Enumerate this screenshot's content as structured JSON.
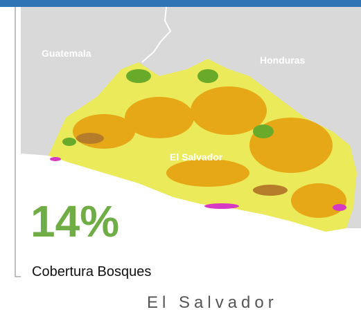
{
  "map": {
    "labels": [
      "Guatemala",
      "Honduras",
      "El Salvador"
    ]
  },
  "stat": {
    "value": "14%",
    "label": "Cobertura Bosques"
  },
  "footer": "El Salvador"
}
